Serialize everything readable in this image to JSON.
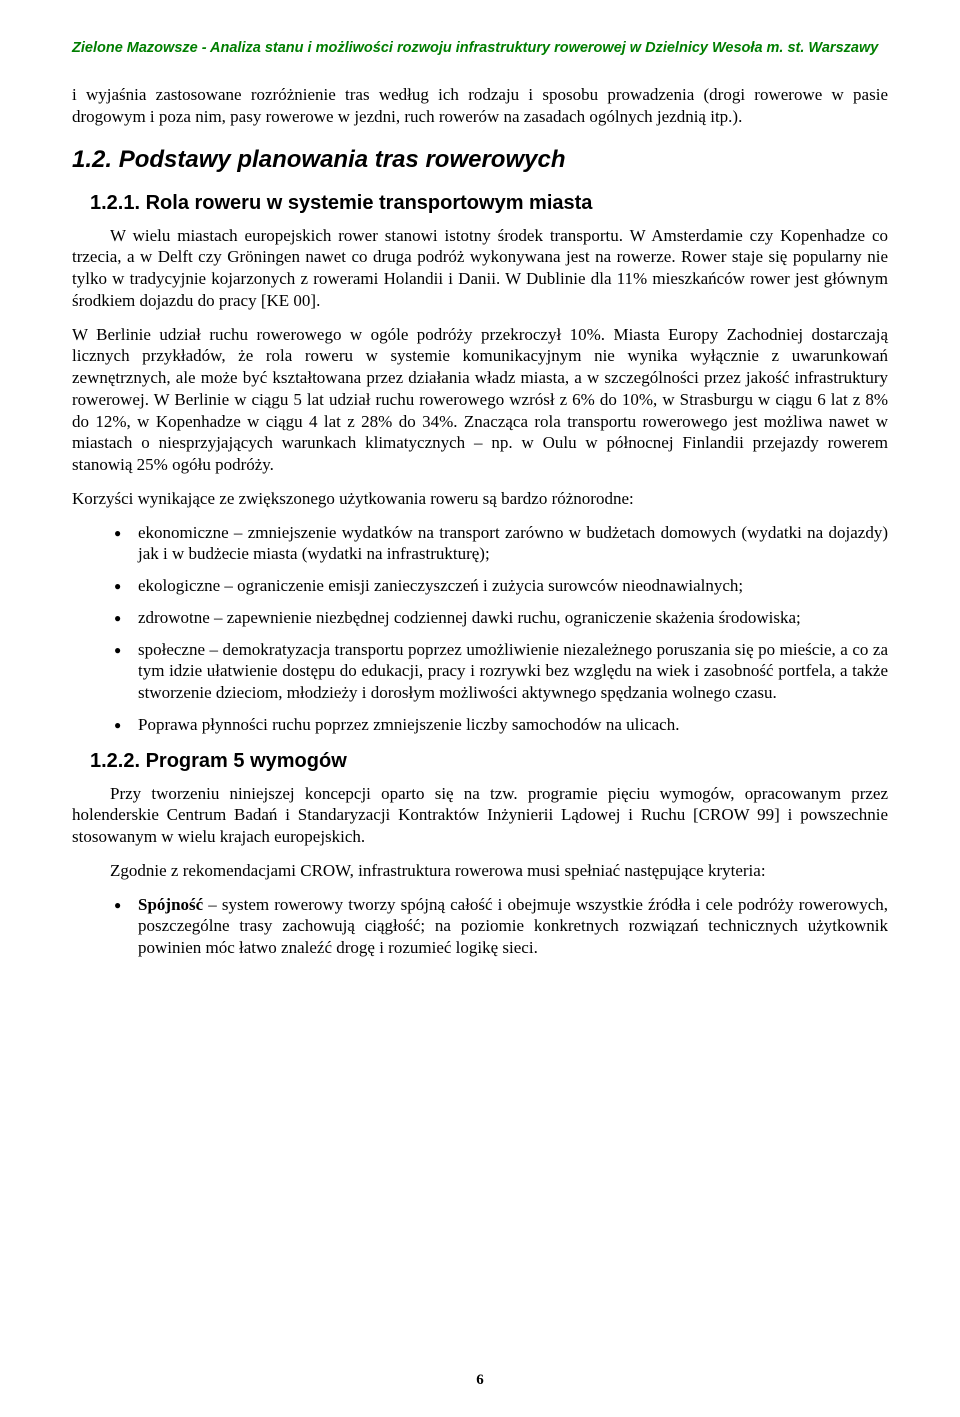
{
  "header": "Zielone Mazowsze - Analiza stanu i możliwości rozwoju infrastruktury rowerowej w Dzielnicy Wesoła  m. st. Warszawy",
  "intro_para": "i wyjaśnia zastosowane rozróżnienie tras według ich rodzaju i sposobu prowadzenia (drogi rowerowe w pasie drogowym i poza nim, pasy rowerowe w jezdni, ruch rowerów na zasadach ogólnych jezdnią itp.).",
  "h2_1": "1.2. Podstawy planowania tras rowerowych",
  "h3_1": "1.2.1. Rola roweru w systemie transportowym miasta",
  "para1": "W wielu miastach europejskich rower stanowi istotny środek transportu. W Amsterdamie czy Kopenhadze co trzecia, a w Delft czy Gröningen nawet co druga podróż wykonywana jest na rowerze. Rower staje się popularny nie tylko w tradycyjnie kojarzonych z rowerami Holandii i Danii. W Dublinie dla 11% mieszkańców rower jest głównym środkiem dojazdu do pracy [KE 00].",
  "para2": "W Berlinie udział ruchu rowerowego w ogóle podróży przekroczył 10%. Miasta Europy Zachodniej dostarczają licznych przykładów, że rola roweru w systemie komunikacyjnym nie wynika wyłącznie z uwarunkowań zewnętrznych, ale może być kształtowana przez działania władz miasta, a w szczególności przez jakość infrastruktury rowerowej. W Berlinie w ciągu 5 lat udział ruchu rowerowego wzrósł z 6% do 10%, w Strasburgu w ciągu 6 lat z 8% do 12%, w Kopenhadze w ciągu 4 lat z 28% do 34%. Znacząca rola transportu rowerowego jest możliwa nawet w miastach o niesprzyjających warunkach klimatycznych – np. w Oulu w północnej Finlandii przejazdy rowerem stanowią 25% ogółu podróży.",
  "para3": "Korzyści wynikające ze zwiększonego użytkowania roweru są bardzo różnorodne:",
  "bullets1": [
    "ekonomiczne – zmniejszenie wydatków na transport zarówno w budżetach domowych (wydatki na dojazdy) jak i w budżecie miasta (wydatki na infrastrukturę);",
    "ekologiczne – ograniczenie emisji zanieczyszczeń i zużycia surowców nieodnawialnych;",
    "zdrowotne – zapewnienie niezbędnej codziennej dawki ruchu, ograniczenie skażenia środowiska;",
    "społeczne – demokratyzacja transportu poprzez umożliwienie niezależnego poruszania się po mieście, a co za tym idzie ułatwienie dostępu do edukacji, pracy i rozrywki bez względu na wiek i zasobność portfela, a także stworzenie dzieciom, młodzieży i dorosłym możliwości aktywnego spędzania wolnego czasu.",
    "Poprawa płynności ruchu poprzez zmniejszenie liczby samochodów na ulicach."
  ],
  "h3_2": "1.2.2. Program 5 wymogów",
  "para4": "Przy tworzeniu niniejszej koncepcji oparto się na tzw. programie pięciu wymogów, opracowanym przez holenderskie Centrum Badań i Standaryzacji Kontraktów Inżynierii Lądowej i Ruchu [CROW 99] i powszechnie stosowanym w wielu krajach europejskich.",
  "para5": "Zgodnie z rekomendacjami CROW, infrastruktura rowerowa musi spełniać następujące kryteria:",
  "bullet2_bold": "Spójność",
  "bullet2_rest": " – system rowerowy tworzy spójną całość i obejmuje wszystkie źródła i cele podróży rowerowych, poszczególne trasy zachowują ciągłość; na poziomie konkretnych rozwiązań technicznych użytkownik powinien móc łatwo znaleźć drogę i rozumieć logikę sieci.",
  "page_number": "6"
}
